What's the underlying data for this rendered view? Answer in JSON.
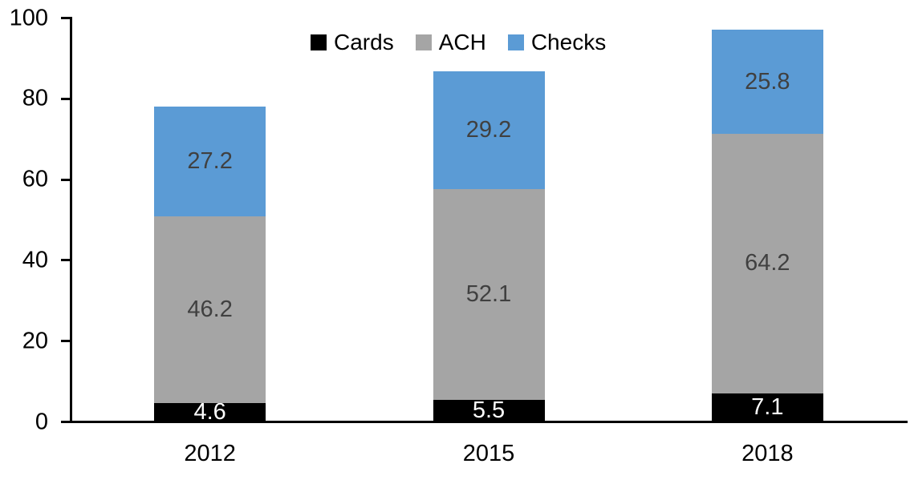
{
  "chart_data": {
    "type": "bar",
    "stacked": true,
    "title": "",
    "xlabel": "",
    "ylabel": "",
    "categories": [
      "2012",
      "2015",
      "2018"
    ],
    "series": [
      {
        "name": "Cards",
        "color": "#000000",
        "label_color": "#ffffff",
        "values": [
          4.6,
          5.5,
          7.1
        ]
      },
      {
        "name": "ACH",
        "color": "#a5a5a5",
        "label_color": "#404040",
        "values": [
          46.2,
          52.1,
          64.2
        ]
      },
      {
        "name": "Checks",
        "color": "#5b9bd5",
        "label_color": "#404040",
        "values": [
          27.2,
          29.2,
          25.8
        ]
      }
    ],
    "totals": [
      78.0,
      86.8,
      97.1
    ],
    "ylim": [
      0,
      100
    ],
    "yticks": [
      0,
      20,
      40,
      60,
      80,
      100
    ],
    "grid": false,
    "legend_position": "top",
    "axis_color": "#000000",
    "background_color": "#ffffff",
    "data_labels_shown": true
  }
}
